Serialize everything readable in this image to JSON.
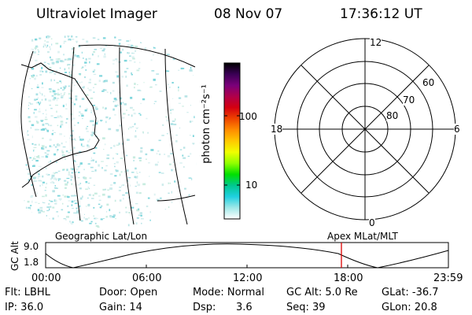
{
  "header": {
    "instrument": "Ultraviolet Imager",
    "date": "08 Nov 07",
    "time": "17:36:12 UT"
  },
  "colorbar": {
    "label": "photon cm⁻²s⁻¹",
    "tick_labels": [
      "100",
      "10"
    ],
    "colors": [
      "#000000",
      "#3a0055",
      "#7a007a",
      "#b0004a",
      "#d40010",
      "#ee4400",
      "#ff8c00",
      "#ffc800",
      "#f0ff00",
      "#90ff00",
      "#00e000",
      "#00c890",
      "#20d0e0",
      "#a0e8e8",
      "#ffffff"
    ]
  },
  "polar_plot": {
    "mlt_labels": {
      "top": "12",
      "left": "18",
      "right": "6",
      "bottom": "0"
    },
    "lat_labels": [
      "60",
      "70",
      "80"
    ]
  },
  "map_labels": {
    "left": "Geographic Lat/Lon",
    "right": "Apex MLat/MLT"
  },
  "altitude_strip": {
    "ylabel": "GC Alt",
    "ymax": "9.0",
    "ymin": "1.8",
    "time_ticks": [
      "00:00",
      "06:00",
      "12:00",
      "18:00",
      "23:59"
    ],
    "marker_color": "#dd0000"
  },
  "status": {
    "row1": {
      "filter": "Flt: LBHL",
      "door": "Door: Open",
      "mode": "Mode: Normal",
      "gc_alt": "GC Alt: 5.0 Re",
      "glat": "GLat: -36.7"
    },
    "row2": {
      "ip": "IP: 36.0",
      "gain": "Gain: 14",
      "dsp_label": "Dsp:",
      "dsp_value": "3.6",
      "seq": "Seq: 39",
      "glon": "GLon:  20.8"
    }
  }
}
